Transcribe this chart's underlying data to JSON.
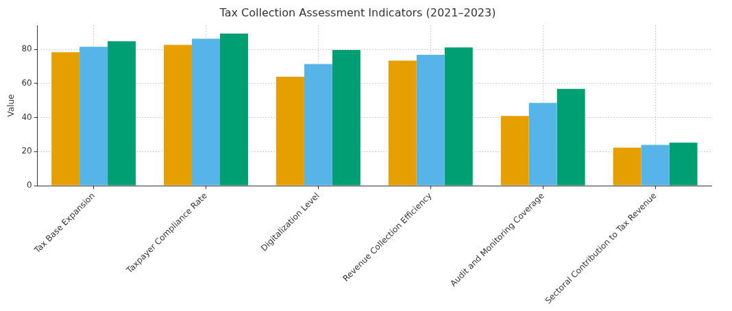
{
  "chart_data": {
    "type": "bar",
    "title": "Tax Collection Assessment Indicators (2021–2023)",
    "ylabel": "Value",
    "categories": [
      "Tax Base Expansion",
      "Taxpayer Compliance Rate",
      "Digitalization Level",
      "Revenue Collection Efficiency",
      "Audit and Monitoring Coverage",
      "Sectoral Contribution to Tax Revenue"
    ],
    "series": [
      {
        "color": "#e69f00",
        "values": [
          78.3,
          82.6,
          63.9,
          73.4,
          40.9,
          22.3
        ]
      },
      {
        "color": "#56b4e9",
        "values": [
          81.5,
          86.2,
          71.4,
          76.8,
          48.6,
          23.9
        ]
      },
      {
        "color": "#009e73",
        "values": [
          84.7,
          89.3,
          79.6,
          81.1,
          56.8,
          25.2
        ]
      }
    ],
    "ylim": [
      0,
      94
    ],
    "yticks": [
      0,
      20,
      40,
      60,
      80
    ],
    "grid": true,
    "legend": false
  }
}
